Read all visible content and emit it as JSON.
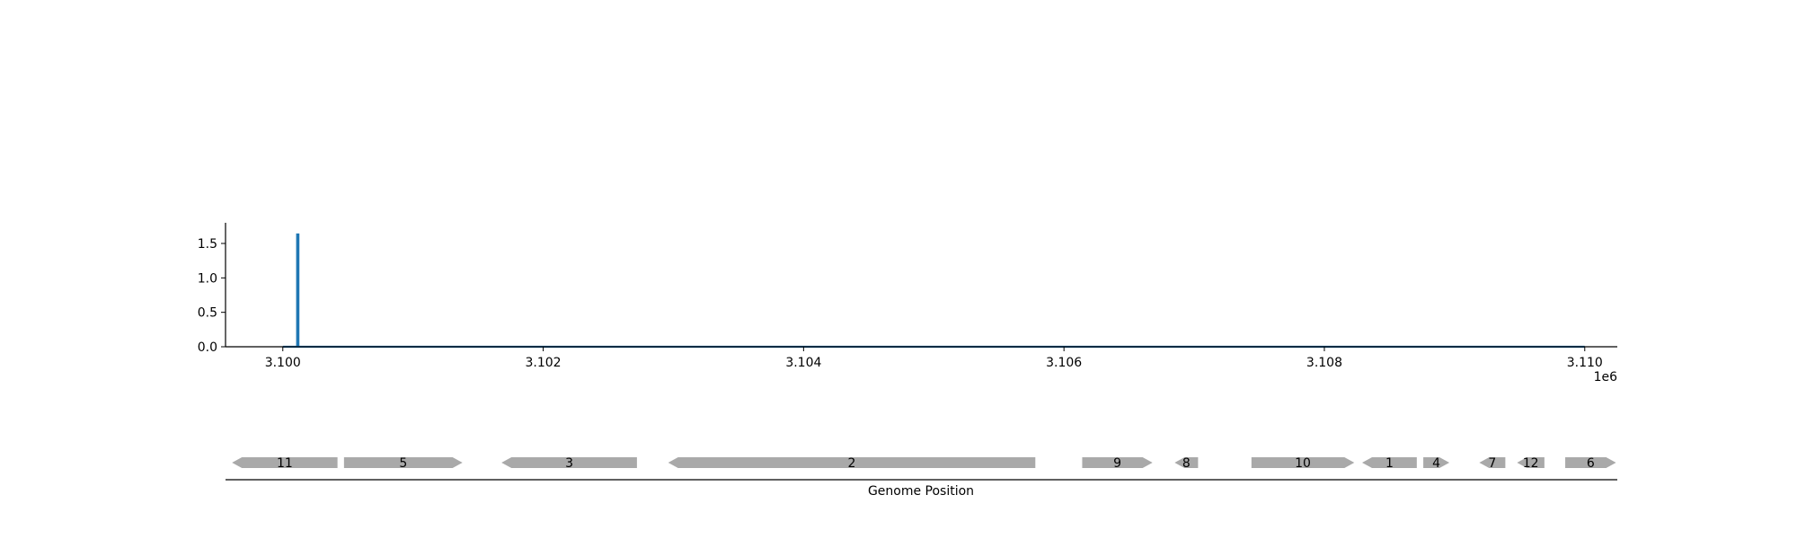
{
  "chart_data": [
    {
      "type": "line",
      "title": "",
      "xlabel": "",
      "ylabel": "",
      "x_offset_label": "1e6",
      "xlim": [
        3.09956,
        3.11025
      ],
      "ylim": [
        0.0,
        1.8
      ],
      "x_ticks": [
        3.1,
        3.102,
        3.104,
        3.106,
        3.108,
        3.11
      ],
      "x_tick_labels": [
        "3.100",
        "3.102",
        "3.104",
        "3.106",
        "3.108",
        "3.110"
      ],
      "y_ticks": [
        0.0,
        0.5,
        1.0,
        1.5
      ],
      "y_tick_labels": [
        "0.0",
        "0.5",
        "1.0",
        "1.5"
      ],
      "grid": false,
      "series": [
        {
          "color": "#1f77b4",
          "x": [
            3.1,
            3.10011,
            3.10011,
            3.10012,
            3.10012,
            3.11
          ],
          "y": [
            0.0,
            0.0,
            1.63,
            1.63,
            0.0,
            0.0
          ]
        }
      ]
    },
    {
      "type": "gene_track",
      "xlabel": "Genome Position",
      "xlim": [
        3.09956,
        3.11025
      ],
      "gene_color": "#a9a9a9",
      "genes": [
        {
          "label": "11",
          "start": 3.09961,
          "end": 3.10042,
          "strand": "-"
        },
        {
          "label": "5",
          "start": 3.10047,
          "end": 3.10138,
          "strand": "+"
        },
        {
          "label": "3",
          "start": 3.10168,
          "end": 3.10272,
          "strand": "-"
        },
        {
          "label": "2",
          "start": 3.10296,
          "end": 3.10578,
          "strand": "-"
        },
        {
          "label": "9",
          "start": 3.10614,
          "end": 3.10668,
          "strand": "+"
        },
        {
          "label": "8",
          "start": 3.10685,
          "end": 3.10703,
          "strand": "-"
        },
        {
          "label": "10",
          "start": 3.10744,
          "end": 3.10823,
          "strand": "+"
        },
        {
          "label": "1",
          "start": 3.10829,
          "end": 3.10871,
          "strand": "-"
        },
        {
          "label": "4",
          "start": 3.10876,
          "end": 3.10896,
          "strand": "+"
        },
        {
          "label": "7",
          "start": 3.10919,
          "end": 3.10939,
          "strand": "-"
        },
        {
          "label": "12",
          "start": 3.10948,
          "end": 3.10969,
          "strand": "-"
        },
        {
          "label": "6",
          "start": 3.10985,
          "end": 3.11024,
          "strand": "+"
        }
      ]
    }
  ]
}
